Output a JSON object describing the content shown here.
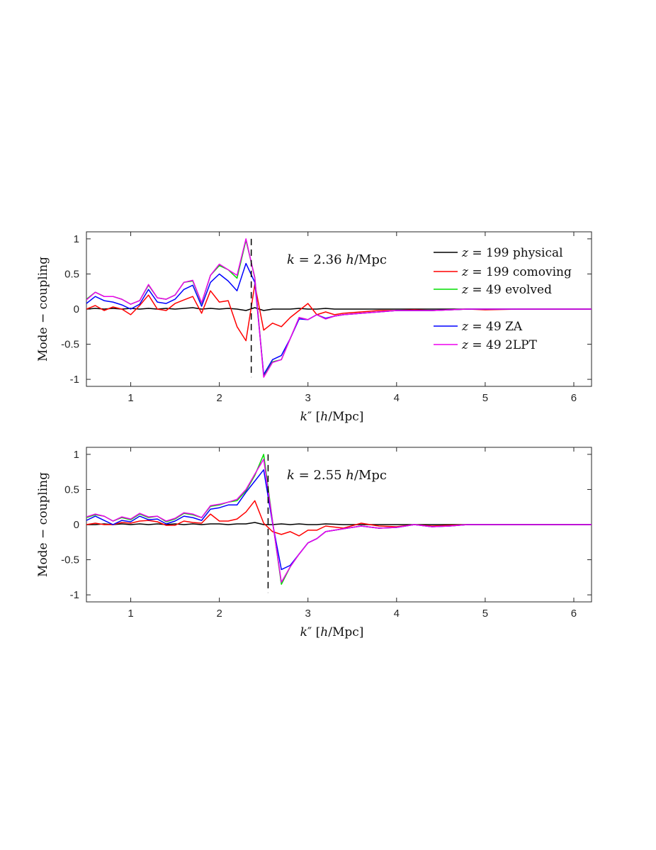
{
  "chart_data": [
    {
      "type": "line",
      "xlabel": "k″  [h/Mpc]",
      "ylabel": "Mode − coupling",
      "annotation": "k = 2.36 h/Mpc",
      "marker_x": 2.36,
      "xlim": [
        0.5,
        6.2
      ],
      "ylim": [
        -1.1,
        1.1
      ],
      "xticks": [
        1,
        2,
        3,
        4,
        5,
        6
      ],
      "yticks": [
        1,
        0.5,
        0,
        -0.5,
        -1
      ],
      "ytick_labels": [
        "1",
        "0.5",
        "0",
        "-0.5",
        "-1"
      ],
      "legend_placement": "top-right",
      "x": [
        0.5,
        0.6,
        0.7,
        0.8,
        0.9,
        1.0,
        1.1,
        1.2,
        1.3,
        1.4,
        1.5,
        1.6,
        1.7,
        1.8,
        1.9,
        2.0,
        2.1,
        2.2,
        2.3,
        2.4,
        2.5,
        2.6,
        2.7,
        2.8,
        2.9,
        3.0,
        3.1,
        3.2,
        3.3,
        3.4,
        3.6,
        3.8,
        4.0,
        4.2,
        4.4,
        4.6,
        4.8,
        5.0,
        5.4,
        5.8,
        6.2
      ],
      "series": [
        {
          "name": "z = 199 physical",
          "color": "#000000",
          "values": [
            0.0,
            0.01,
            0.0,
            0.01,
            0.0,
            0.01,
            0.0,
            0.01,
            0.0,
            0.01,
            0.0,
            0.01,
            0.02,
            0.0,
            0.01,
            0.0,
            0.01,
            0.0,
            -0.02,
            0.02,
            -0.02,
            0.0,
            0.0,
            0.0,
            0.01,
            0.0,
            0.0,
            0.01,
            0.0,
            0.0,
            0.0,
            0.0,
            0.0,
            0.0,
            0.0,
            0.0,
            0.0,
            0.0,
            0.0,
            0.0,
            0.0
          ]
        },
        {
          "name": "z = 199 comoving",
          "color": "#ff0000",
          "values": [
            0.0,
            0.05,
            -0.02,
            0.03,
            0.0,
            -0.08,
            0.05,
            0.2,
            0.0,
            -0.02,
            0.08,
            0.13,
            0.18,
            -0.06,
            0.26,
            0.1,
            0.12,
            -0.25,
            -0.45,
            0.35,
            -0.3,
            -0.2,
            -0.25,
            -0.12,
            -0.02,
            0.08,
            -0.08,
            -0.04,
            -0.08,
            -0.06,
            -0.04,
            -0.02,
            -0.02,
            -0.01,
            -0.02,
            -0.01,
            0.0,
            -0.01,
            0.0,
            0.0,
            0.0
          ]
        },
        {
          "name": "z = 49 evolved",
          "color": "#00dd00",
          "values": [
            0.14,
            0.24,
            0.18,
            0.18,
            0.14,
            0.07,
            0.12,
            0.34,
            0.16,
            0.14,
            0.2,
            0.38,
            0.4,
            0.08,
            0.48,
            0.62,
            0.56,
            0.44,
            0.98,
            0.45,
            -0.95,
            -0.75,
            -0.72,
            -0.42,
            -0.12,
            -0.15,
            -0.08,
            -0.14,
            -0.1,
            -0.08,
            -0.06,
            -0.04,
            -0.02,
            -0.02,
            -0.02,
            -0.01,
            0.0,
            0.0,
            0.0,
            0.0,
            0.0
          ]
        },
        {
          "name": "z = 49 ZA",
          "color": "#0000ff",
          "values": [
            0.08,
            0.18,
            0.12,
            0.1,
            0.06,
            0.0,
            0.07,
            0.28,
            0.1,
            0.08,
            0.14,
            0.28,
            0.34,
            0.04,
            0.38,
            0.5,
            0.4,
            0.26,
            0.65,
            0.38,
            -0.93,
            -0.72,
            -0.66,
            -0.42,
            -0.14,
            -0.15,
            -0.08,
            -0.13,
            -0.1,
            -0.08,
            -0.06,
            -0.04,
            -0.02,
            -0.02,
            -0.02,
            -0.01,
            0.0,
            0.0,
            0.0,
            0.0,
            0.0
          ]
        },
        {
          "name": "z = 49 2LPT",
          "color": "#ee00ee",
          "values": [
            0.13,
            0.24,
            0.18,
            0.18,
            0.14,
            0.07,
            0.12,
            0.35,
            0.16,
            0.14,
            0.2,
            0.38,
            0.41,
            0.09,
            0.48,
            0.64,
            0.56,
            0.48,
            1.0,
            0.44,
            -0.97,
            -0.76,
            -0.72,
            -0.42,
            -0.12,
            -0.15,
            -0.08,
            -0.14,
            -0.1,
            -0.08,
            -0.06,
            -0.04,
            -0.02,
            -0.02,
            -0.02,
            -0.01,
            0.0,
            0.0,
            0.0,
            0.0,
            0.0
          ]
        }
      ]
    },
    {
      "type": "line",
      "xlabel": "k″  [h/Mpc]",
      "ylabel": "Mode − coupling",
      "annotation": "k = 2.55 h/Mpc",
      "marker_x": 2.55,
      "xlim": [
        0.5,
        6.2
      ],
      "ylim": [
        -1.1,
        1.1
      ],
      "xticks": [
        1,
        2,
        3,
        4,
        5,
        6
      ],
      "yticks": [
        1,
        0.5,
        0,
        -0.5,
        -1
      ],
      "ytick_labels": [
        "1",
        "0.5",
        "0",
        "-0.5",
        "-1"
      ],
      "x": [
        0.5,
        0.6,
        0.7,
        0.8,
        0.9,
        1.0,
        1.1,
        1.2,
        1.3,
        1.4,
        1.5,
        1.6,
        1.7,
        1.8,
        1.9,
        2.0,
        2.1,
        2.2,
        2.3,
        2.4,
        2.5,
        2.6,
        2.7,
        2.8,
        2.9,
        3.0,
        3.1,
        3.2,
        3.4,
        3.6,
        3.8,
        4.0,
        4.2,
        4.4,
        4.6,
        4.8,
        5.0,
        5.4,
        5.8,
        6.2
      ],
      "series": [
        {
          "name": "z = 199 physical",
          "color": "#000000",
          "values": [
            0.0,
            0.0,
            0.01,
            0.0,
            0.01,
            0.0,
            0.01,
            0.0,
            0.01,
            0.0,
            0.01,
            0.0,
            0.01,
            0.0,
            0.01,
            0.01,
            0.0,
            0.01,
            0.01,
            0.03,
            0.0,
            0.0,
            0.01,
            0.0,
            0.01,
            0.0,
            0.0,
            0.01,
            0.0,
            0.0,
            0.0,
            0.0,
            0.0,
            0.0,
            0.0,
            0.0,
            0.0,
            0.0,
            0.0,
            0.0
          ]
        },
        {
          "name": "z = 199 comoving",
          "color": "#ff0000",
          "values": [
            0.0,
            0.02,
            0.0,
            0.0,
            0.03,
            0.02,
            0.05,
            0.06,
            0.04,
            -0.01,
            -0.01,
            0.05,
            0.03,
            0.02,
            0.15,
            0.05,
            0.05,
            0.08,
            0.18,
            0.34,
            0.02,
            -0.1,
            -0.14,
            -0.1,
            -0.16,
            -0.08,
            -0.08,
            -0.02,
            -0.05,
            0.02,
            -0.02,
            -0.03,
            0.0,
            -0.02,
            -0.01,
            0.0,
            0.0,
            0.0,
            0.0,
            0.0
          ]
        },
        {
          "name": "z = 49 evolved",
          "color": "#00dd00",
          "values": [
            0.1,
            0.14,
            0.12,
            0.05,
            0.1,
            0.07,
            0.15,
            0.1,
            0.12,
            0.04,
            0.08,
            0.16,
            0.14,
            0.1,
            0.26,
            0.28,
            0.32,
            0.34,
            0.48,
            0.7,
            1.0,
            0.05,
            -0.85,
            -0.6,
            -0.42,
            -0.26,
            -0.2,
            -0.1,
            -0.06,
            -0.02,
            -0.05,
            -0.04,
            0.0,
            -0.03,
            -0.02,
            0.0,
            0.0,
            0.0,
            0.0,
            0.0
          ]
        },
        {
          "name": "z = 49 ZA",
          "color": "#0000ff",
          "values": [
            0.06,
            0.12,
            0.06,
            0.0,
            0.06,
            0.04,
            0.12,
            0.07,
            0.08,
            0.01,
            0.05,
            0.12,
            0.1,
            0.06,
            0.22,
            0.24,
            0.28,
            0.28,
            0.46,
            0.62,
            0.78,
            0.02,
            -0.64,
            -0.58,
            -0.42,
            -0.26,
            -0.2,
            -0.1,
            -0.06,
            -0.02,
            -0.05,
            -0.04,
            0.0,
            -0.03,
            -0.02,
            0.0,
            0.0,
            0.0,
            0.0,
            0.0
          ]
        },
        {
          "name": "z = 49 2LPT",
          "color": "#ee00ee",
          "values": [
            0.11,
            0.15,
            0.12,
            0.05,
            0.11,
            0.08,
            0.16,
            0.11,
            0.12,
            0.05,
            0.09,
            0.17,
            0.15,
            0.1,
            0.27,
            0.29,
            0.32,
            0.36,
            0.5,
            0.72,
            0.93,
            0.04,
            -0.82,
            -0.6,
            -0.42,
            -0.26,
            -0.2,
            -0.1,
            -0.06,
            -0.02,
            -0.05,
            -0.04,
            0.0,
            -0.03,
            -0.02,
            0.0,
            0.0,
            0.0,
            0.0,
            0.0
          ]
        }
      ]
    }
  ]
}
